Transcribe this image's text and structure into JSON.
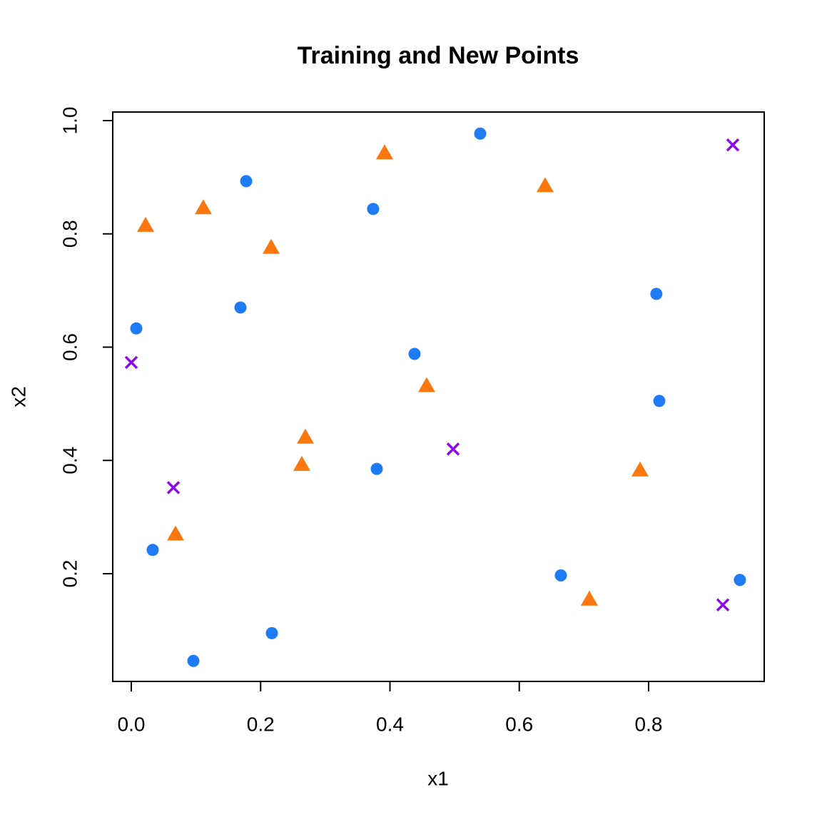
{
  "chart_data": {
    "type": "scatter",
    "title": "Training and New Points",
    "x_label": "x1",
    "y_label": "x2",
    "xlim": [
      -0.0287,
      0.9788
    ],
    "ylim": [
      0.0098,
      1.0151
    ],
    "xticks": [
      {
        "value": 0,
        "label": "0.0"
      },
      0.2,
      0.4,
      0.6,
      0.8
    ],
    "yticks": [
      0.2,
      0.4,
      0.6,
      0.8,
      {
        "value": 1,
        "label": "1.0"
      }
    ],
    "grid": false,
    "series": [
      {
        "color": "#1e7af5",
        "marker": "circle",
        "x": [
          0.5396,
          0.1777,
          0.374,
          0.0077,
          0.1688,
          0.438,
          0.812,
          0.8166,
          0.3796,
          0.0331,
          0.6643,
          0.9412,
          0.2174,
          0.096
        ],
        "values": [
          0.977,
          0.893,
          0.844,
          0.633,
          0.67,
          0.588,
          0.694,
          0.505,
          0.385,
          0.242,
          0.197,
          0.189,
          0.095,
          0.046
        ]
      },
      {
        "color": "#fa780f",
        "marker": "triangle",
        "x": [
          0.3917,
          0.64,
          0.1114,
          0.0221,
          0.2163,
          0.4568,
          0.2692,
          0.2637,
          0.7868,
          0.0684,
          0.7084
        ],
        "values": [
          0.943,
          0.885,
          0.846,
          0.815,
          0.776,
          0.532,
          0.441,
          0.393,
          0.383,
          0.27,
          0.155
        ]
      },
      {
        "color": "#8c0ae6",
        "marker": "x",
        "x": [
          0.9302,
          0.0,
          0.4977,
          0.0651,
          0.9148
        ],
        "values": [
          0.957,
          0.573,
          0.42,
          0.352,
          0.145
        ]
      }
    ]
  }
}
